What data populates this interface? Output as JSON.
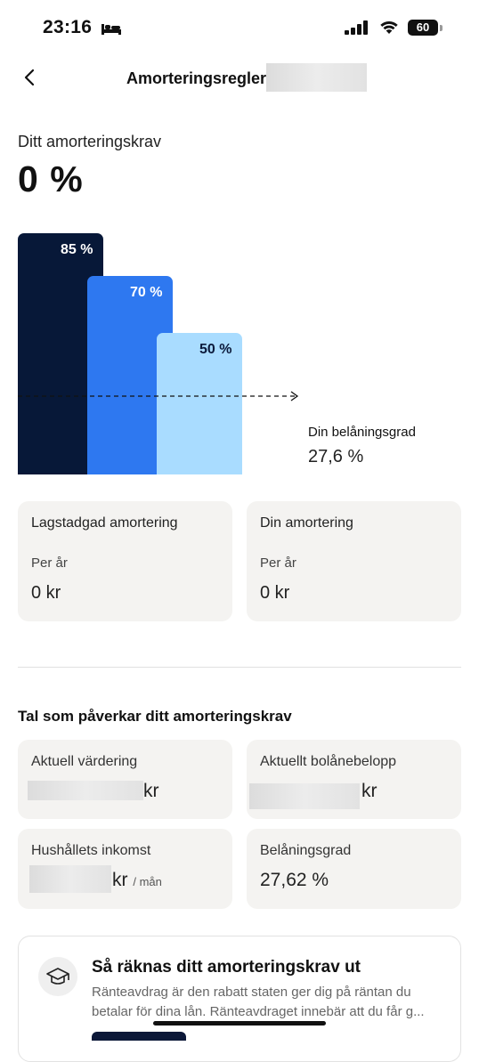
{
  "status_bar": {
    "time": "23:16",
    "battery": "60"
  },
  "header": {
    "title": "Amorteringsregler"
  },
  "requirement": {
    "label": "Ditt amorteringskrav",
    "value": "0 %"
  },
  "chart_data": {
    "type": "bar",
    "categories": [
      "85 %",
      "70 %",
      "50 %"
    ],
    "values": [
      85,
      70,
      50
    ],
    "colors": [
      "#071838",
      "#2e78f0",
      "#a9dcff"
    ],
    "label_colors": [
      "#ffffff",
      "#ffffff",
      "#0b1a3b"
    ],
    "ylim": [
      0,
      85
    ],
    "reference_line": {
      "label": "Din belåningsgrad",
      "value": 27.6,
      "display": "27,6 %"
    }
  },
  "cards": {
    "legal": {
      "title": "Lagstadgad amortering",
      "sub": "Per år",
      "value": "0 kr"
    },
    "yours": {
      "title": "Din amortering",
      "sub": "Per år",
      "value": "0 kr"
    }
  },
  "factors": {
    "title": "Tal som påverkar ditt amorteringskrav",
    "valuation": {
      "title": "Aktuell värdering",
      "unit": "kr"
    },
    "loan": {
      "title": "Aktuellt bolånebelopp",
      "unit": "kr"
    },
    "income": {
      "title": "Hushållets inkomst",
      "unit": "kr",
      "unit_suffix": "/ mån"
    },
    "ltv": {
      "title": "Belåningsgrad",
      "value": "27,62 %"
    }
  },
  "info": {
    "title": "Så räknas ditt amorteringskrav ut",
    "line1": "Ränteavdrag är den rabatt staten ger dig på räntan du",
    "line2": "betalar för dina lån. Ränteavdraget innebär att du får g..."
  }
}
